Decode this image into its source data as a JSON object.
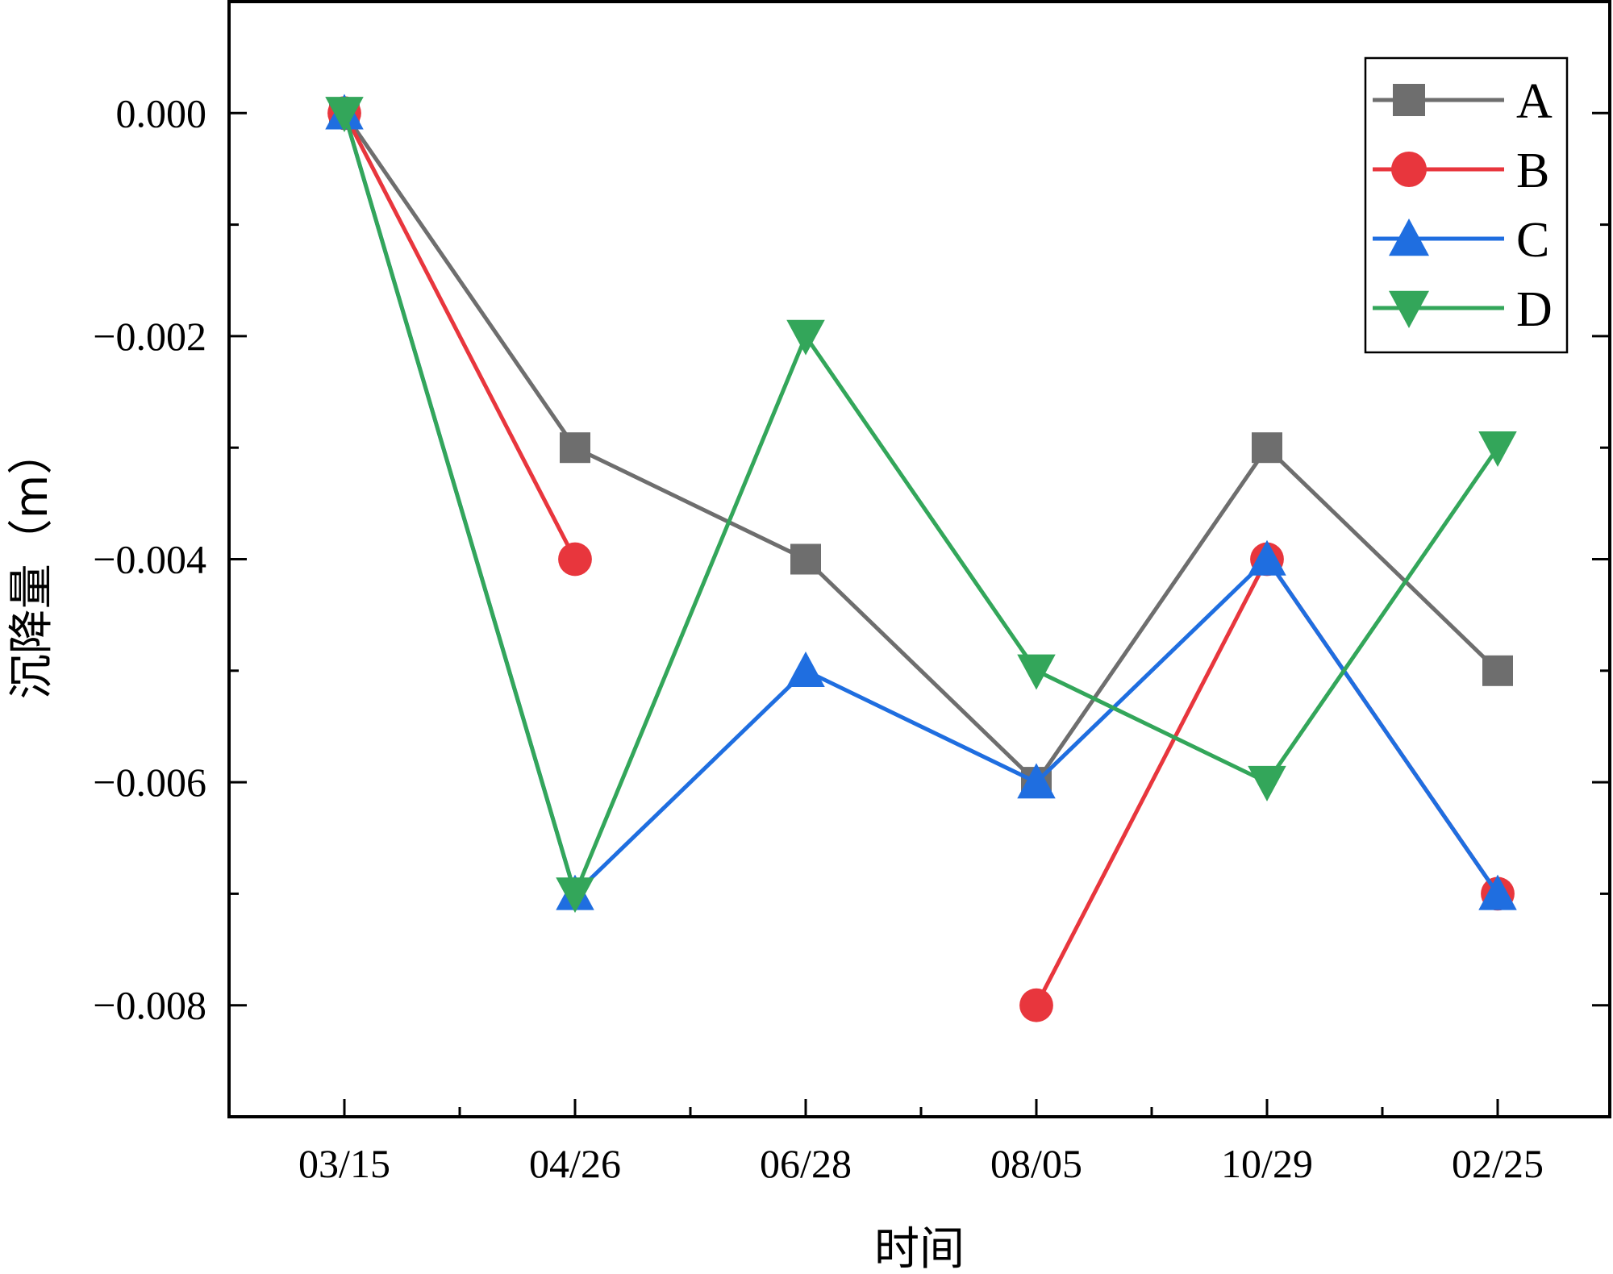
{
  "chart_data": {
    "type": "line",
    "xlabel": "时间",
    "ylabel": "沉降量（m）",
    "categories": [
      "03/15",
      "04/26",
      "06/28",
      "08/05",
      "10/29",
      "02/25"
    ],
    "ylim": [
      -0.009,
      0.001
    ],
    "yticks": [
      0.0,
      -0.002,
      -0.004,
      -0.006,
      -0.008
    ],
    "ytick_labels": [
      "0.000",
      "−0.002",
      "−0.004",
      "−0.006",
      "−0.008"
    ],
    "grid": false,
    "legend": "top-right",
    "series": [
      {
        "name": "A",
        "color": "#6e6e6e",
        "marker": "square",
        "values": [
          0.0,
          -0.003,
          -0.004,
          -0.006,
          -0.003,
          -0.005
        ]
      },
      {
        "name": "B",
        "color": "#e8363d",
        "marker": "circle",
        "values": [
          0.0,
          -0.004,
          null,
          -0.008,
          -0.004,
          -0.007
        ]
      },
      {
        "name": "C",
        "color": "#1f6ee0",
        "marker": "triangle-up",
        "values": [
          0.0,
          -0.007,
          -0.005,
          -0.006,
          -0.004,
          -0.007
        ]
      },
      {
        "name": "D",
        "color": "#33a65a",
        "marker": "triangle-down",
        "values": [
          0.0,
          -0.007,
          -0.002,
          -0.005,
          -0.006,
          -0.003
        ]
      }
    ]
  }
}
